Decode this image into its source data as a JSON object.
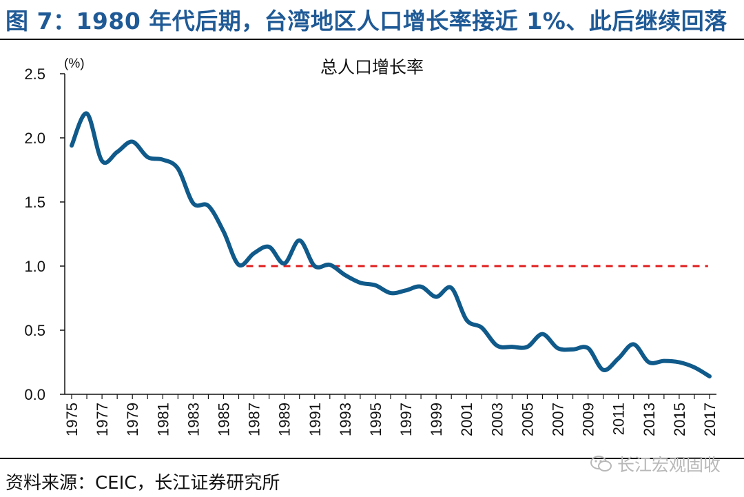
{
  "figure": {
    "title": "图 7：1980 年代后期，台湾地区人口增长率接近 1%、此后继续回落",
    "source": "资料来源：CEIC，长江证券研究所",
    "watermark": "长江宏观固收"
  },
  "colors": {
    "title": "#1f5a96",
    "line": "#0f5a8a",
    "reference": "#e01e1e"
  },
  "chart_data": {
    "type": "line",
    "title": "总人口增长率",
    "unit": "(%)",
    "ylim": [
      0,
      2.5
    ],
    "yticks": [
      "0.0",
      "0.5",
      "1.0",
      "1.5",
      "2.0",
      "2.5"
    ],
    "xlim": [
      1975,
      2017
    ],
    "xticks": [
      "1975",
      "1977",
      "1979",
      "1981",
      "1983",
      "1985",
      "1987",
      "1989",
      "1991",
      "1993",
      "1995",
      "1997",
      "1999",
      "2001",
      "2003",
      "2005",
      "2007",
      "2009",
      "2011",
      "2013",
      "2015",
      "2017"
    ],
    "reference_line": {
      "y": 1.0,
      "style": "dashed",
      "x_range": [
        1986.5,
        2016.9
      ]
    },
    "series": [
      {
        "name": "",
        "x": [
          1975,
          1976,
          1977,
          1978,
          1979,
          1980,
          1981,
          1982,
          1983,
          1984,
          1985,
          1986,
          1987,
          1988,
          1989,
          1990,
          1991,
          1992,
          1993,
          1994,
          1995,
          1996,
          1997,
          1998,
          1999,
          2000,
          2001,
          2002,
          2003,
          2004,
          2005,
          2006,
          2007,
          2008,
          2009,
          2010,
          2011,
          2012,
          2013,
          2014,
          2015,
          2016,
          2017
        ],
        "values": [
          1.94,
          2.19,
          1.82,
          1.89,
          1.97,
          1.85,
          1.83,
          1.76,
          1.49,
          1.47,
          1.27,
          1.01,
          1.1,
          1.15,
          1.02,
          1.2,
          1.0,
          1.01,
          0.93,
          0.87,
          0.85,
          0.79,
          0.81,
          0.84,
          0.76,
          0.83,
          0.58,
          0.52,
          0.38,
          0.37,
          0.37,
          0.47,
          0.36,
          0.35,
          0.36,
          0.19,
          0.28,
          0.39,
          0.25,
          0.26,
          0.25,
          0.21,
          0.14
        ]
      }
    ]
  }
}
